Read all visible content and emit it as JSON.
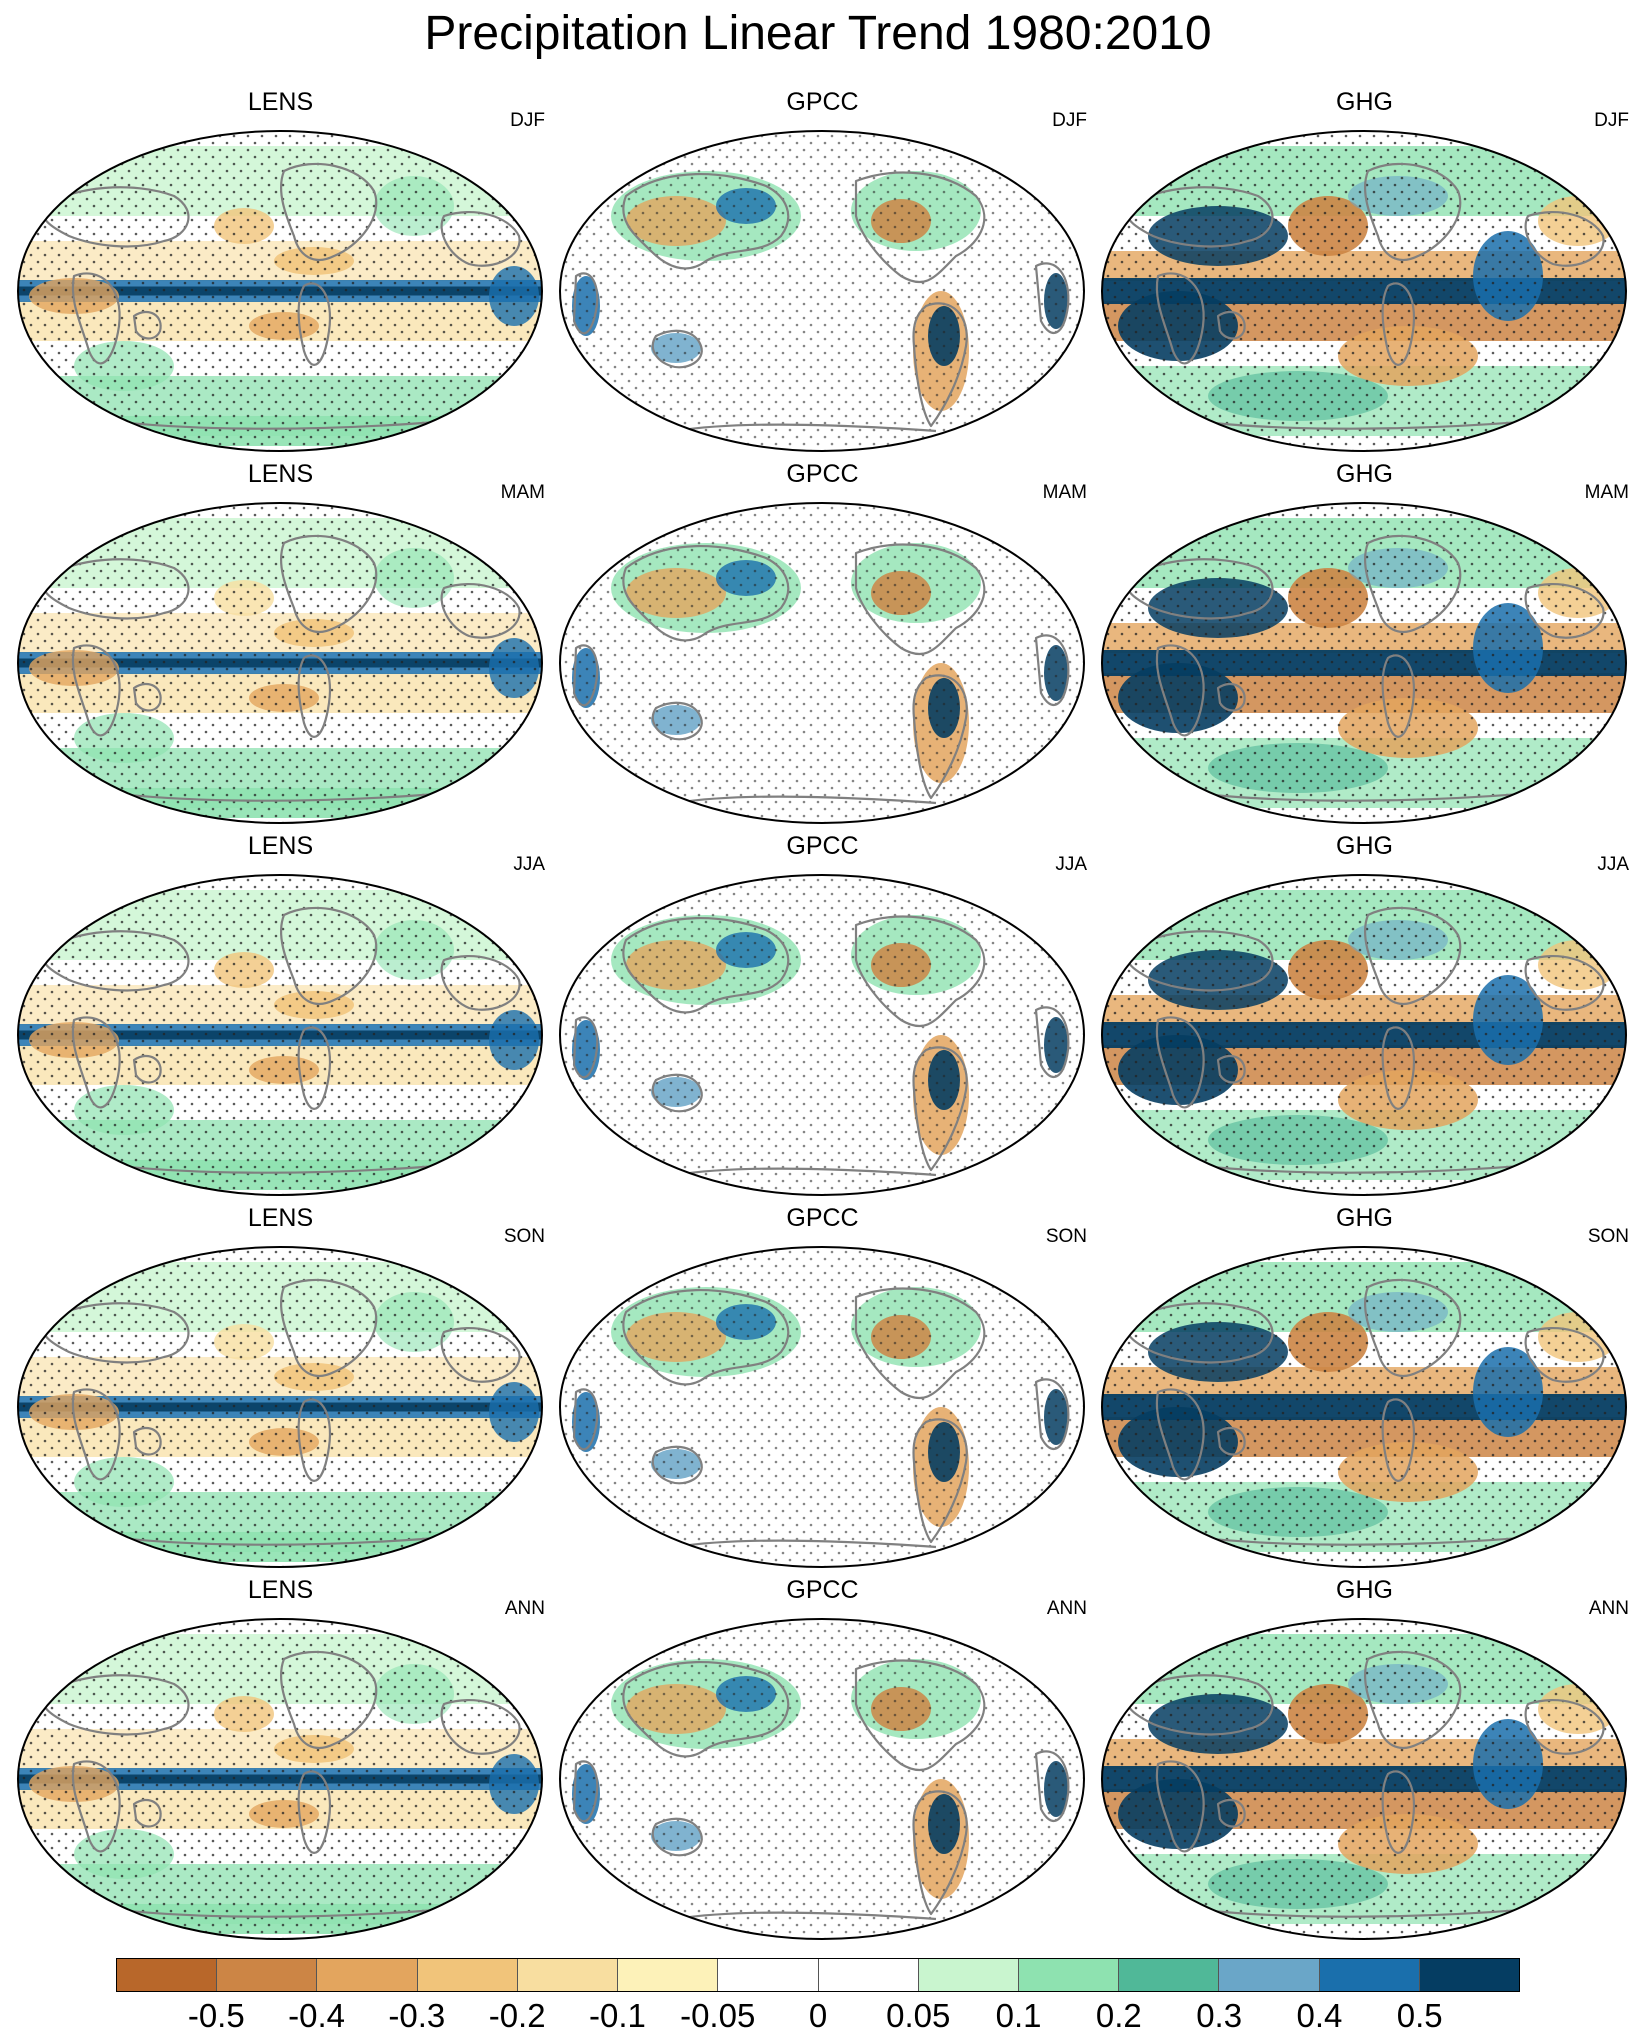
{
  "title": "Precipitation Linear Trend 1980:2010",
  "columns": [
    "LENS",
    "GPCC",
    "GHG"
  ],
  "rows": [
    "DJF",
    "MAM",
    "JJA",
    "SON",
    "ANN"
  ],
  "colorbar": {
    "labels": [
      "-0.5",
      "-0.4",
      "-0.3",
      "-0.2",
      "-0.1",
      "-0.05",
      "0",
      "0.05",
      "0.1",
      "0.2",
      "0.3",
      "0.4",
      "0.5"
    ],
    "colors": [
      "#b8672a",
      "#cc8545",
      "#e3a55e",
      "#f1c47a",
      "#f8dea0",
      "#fdf2b9",
      "#ffffff",
      "#ffffff",
      "#c9f5cf",
      "#8ee2b0",
      "#50b898",
      "#6aa6c8",
      "#1a6fac",
      "#053d62"
    ]
  },
  "palette": {
    "land_outline": "#808080",
    "map_outline": "#000000",
    "stipple": "#222222"
  }
}
